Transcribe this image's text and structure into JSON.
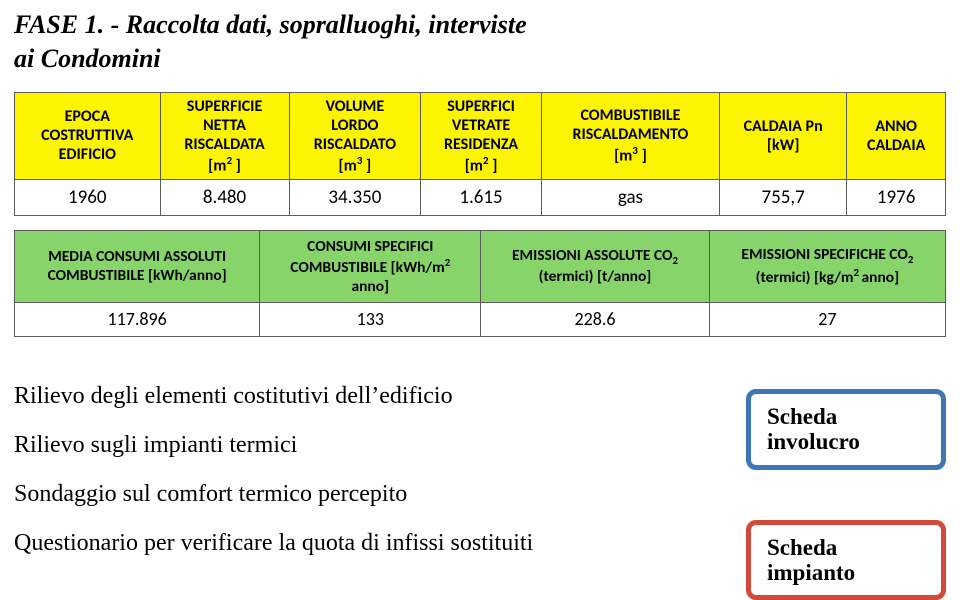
{
  "title_line1": "FASE 1. - Raccolta dati, sopralluoghi, interviste",
  "title_line2": "ai Condomini",
  "table_yellow": {
    "headers": [
      "EPOCA COSTRUTTIVA EDIFICIO",
      "SUPERFICIE NETTA RISCALDATA [m² ]",
      "VOLUME LORDO RISCALDATO [m³ ]",
      "SUPERFICI VETRATE RESIDENZA [m² ]",
      "COMBUSTIBILE RISCALDAMENTO [m³ ]",
      "CALDAIA Pn [kW]",
      "ANNO CALDAIA"
    ],
    "row": [
      "1960",
      "8.480",
      "34.350",
      "1.615",
      "gas",
      "755,7",
      "1976"
    ]
  },
  "table_green": {
    "headers": [
      "MEDIA CONSUMI ASSOLUTI COMBUSTIBILE [kWh/anno]",
      "CONSUMI SPECIFICI COMBUSTIBILE [kWh/m² anno]",
      "EMISSIONI ASSOLUTE CO₂ (termici) [t/anno]",
      "EMISSIONI SPECIFICHE CO₂ (termici) [kg/m² anno]"
    ],
    "row": [
      "117.896",
      "133",
      "228.6",
      "27"
    ]
  },
  "notes": [
    "Rilievo degli elementi costitutivi dell’edificio",
    "Rilievo sugli impianti termici",
    "Sondaggio sul comfort termico percepito",
    "Questionario per verificare la quota di infissi sostituiti"
  ],
  "box_blue": {
    "line1": "Scheda",
    "line2": "involucro"
  },
  "box_red": {
    "line1": "Scheda",
    "line2": "impianto"
  }
}
